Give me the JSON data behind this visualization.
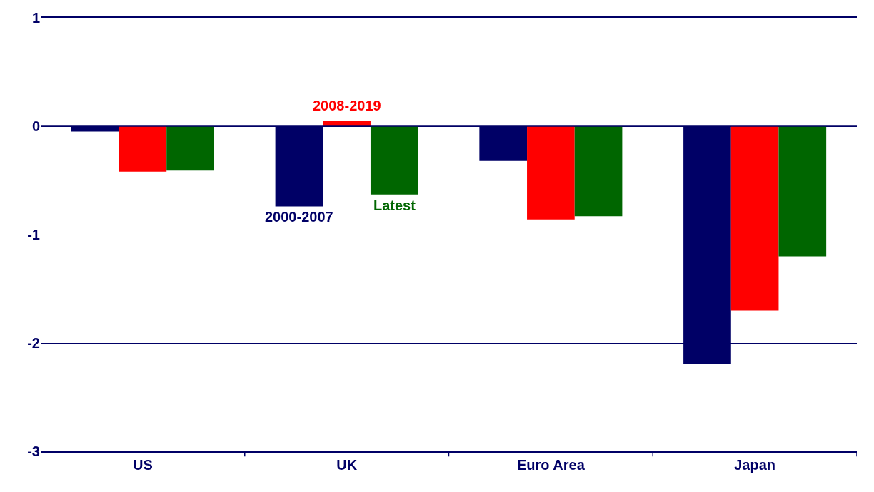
{
  "chart_data": {
    "type": "bar",
    "categories": [
      "US",
      "UK",
      "Euro Area",
      "Japan"
    ],
    "series": [
      {
        "name": "2000-2007",
        "color": "#000066",
        "values": [
          -0.05,
          -0.74,
          -0.32,
          -2.19
        ]
      },
      {
        "name": "2008-2019",
        "color": "#ff0000",
        "values": [
          -0.42,
          0.05,
          -0.86,
          -1.7
        ]
      },
      {
        "name": "Latest",
        "color": "#006600",
        "values": [
          -0.41,
          -0.63,
          -0.83,
          -1.2
        ]
      }
    ],
    "ref_lines": [
      {
        "axis": "y",
        "value": 0,
        "color": "#000066"
      }
    ],
    "ylim": [
      -3,
      1
    ],
    "yticks": [
      -3,
      -2,
      -1,
      0,
      1
    ],
    "grid": "y",
    "legend": false
  }
}
